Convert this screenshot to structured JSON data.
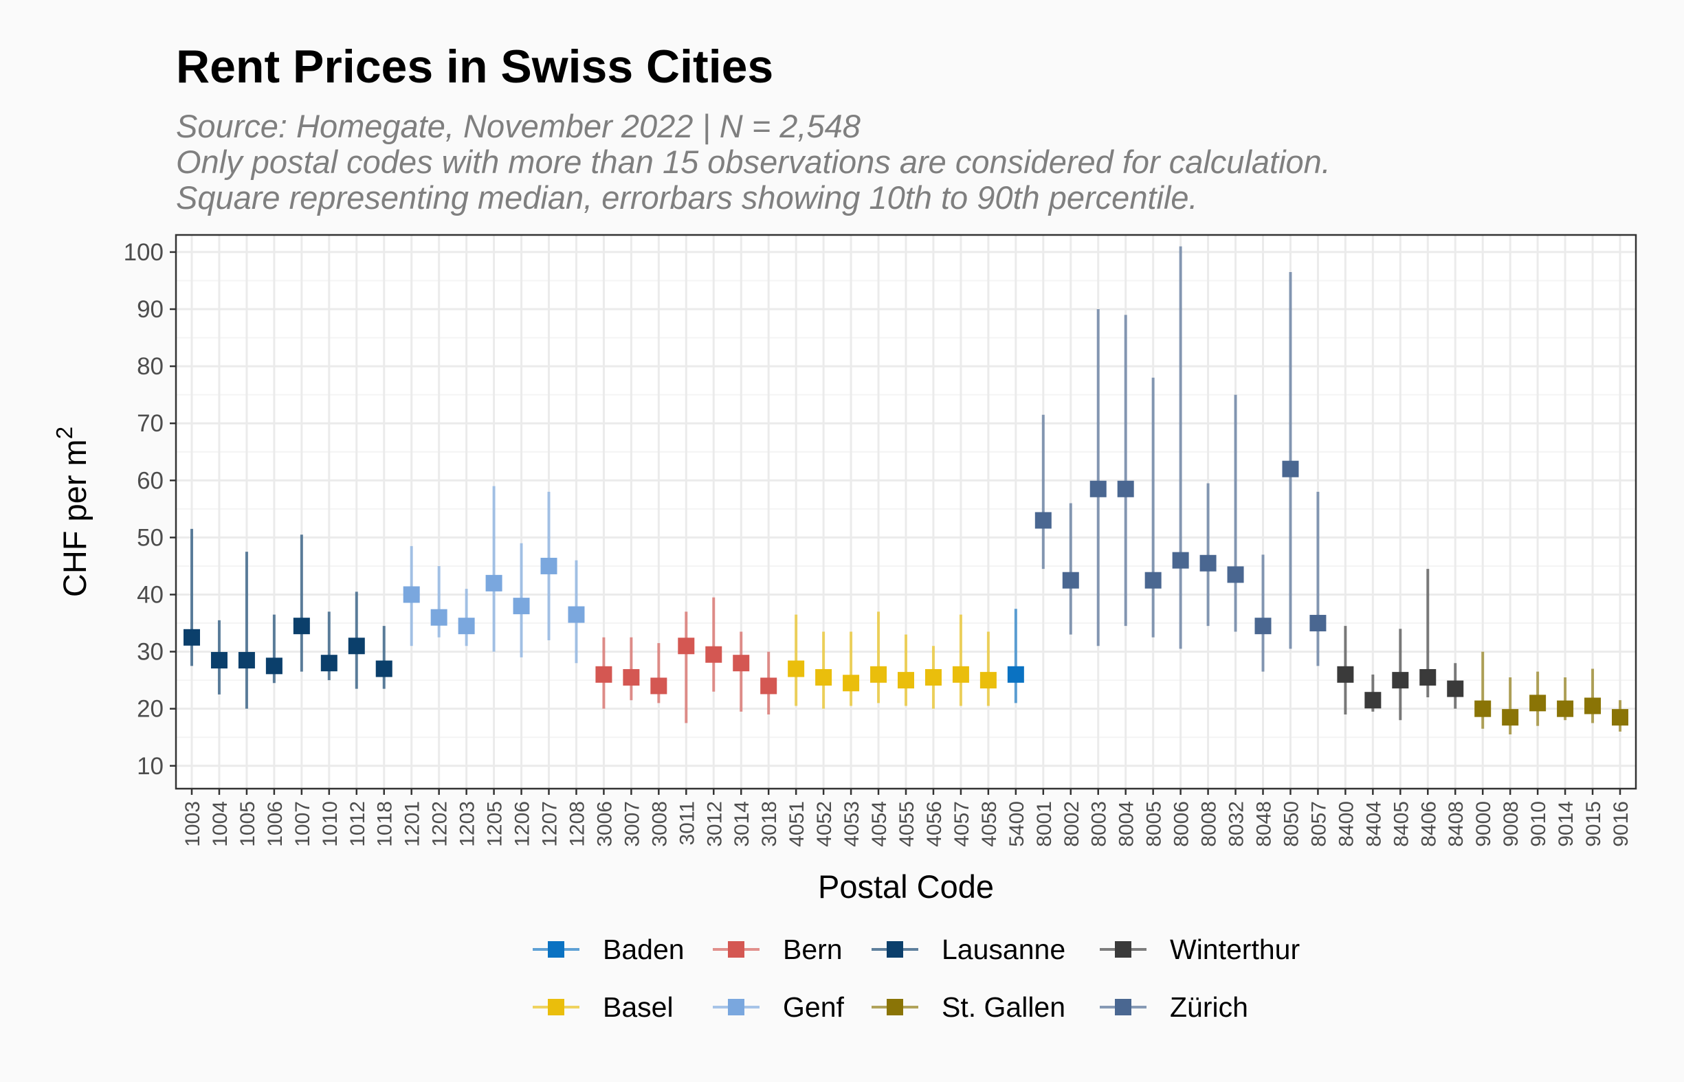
{
  "chart_data": {
    "type": "scatter",
    "title": "Rent Prices in Swiss Cities",
    "subtitle": [
      "Source: Homegate, November 2022 | N = 2,548",
      "Only postal codes with more than 15 observations are considered for calculation.",
      "Square representing median, errorbars showing 10th to 90th percentile."
    ],
    "xlabel": "Postal Code",
    "ylabel": "CHF per m",
    "ylabel_superscript": "2",
    "ylim": [
      6,
      103
    ],
    "yticks": [
      10,
      20,
      30,
      40,
      50,
      60,
      70,
      80,
      90,
      100
    ],
    "grid": true,
    "legend_position": "bottom",
    "legend": [
      {
        "name": "Baden",
        "color": "#0a72c2"
      },
      {
        "name": "Bern",
        "color": "#d45752"
      },
      {
        "name": "Lausanne",
        "color": "#0b3f6b"
      },
      {
        "name": "Winterthur",
        "color": "#3a3a3a"
      },
      {
        "name": "Basel",
        "color": "#eabe0c"
      },
      {
        "name": "Genf",
        "color": "#7aa7de"
      },
      {
        "name": "St. Gallen",
        "color": "#8a7406"
      },
      {
        "name": "Zürich",
        "color": "#4a6791"
      }
    ],
    "points": [
      {
        "code": "1003",
        "city": "Lausanne",
        "median": 32.5,
        "p10": 27.5,
        "p90": 51.5
      },
      {
        "code": "1004",
        "city": "Lausanne",
        "median": 28.5,
        "p10": 22.5,
        "p90": 35.5
      },
      {
        "code": "1005",
        "city": "Lausanne",
        "median": 28.5,
        "p10": 20,
        "p90": 47.5
      },
      {
        "code": "1006",
        "city": "Lausanne",
        "median": 27.5,
        "p10": 24.5,
        "p90": 36.5
      },
      {
        "code": "1007",
        "city": "Lausanne",
        "median": 34.5,
        "p10": 26.5,
        "p90": 50.5
      },
      {
        "code": "1010",
        "city": "Lausanne",
        "median": 28,
        "p10": 25,
        "p90": 37
      },
      {
        "code": "1012",
        "city": "Lausanne",
        "median": 31,
        "p10": 23.5,
        "p90": 40.5
      },
      {
        "code": "1018",
        "city": "Lausanne",
        "median": 27,
        "p10": 23.5,
        "p90": 34.5
      },
      {
        "code": "1201",
        "city": "Genf",
        "median": 40,
        "p10": 31,
        "p90": 48.5
      },
      {
        "code": "1202",
        "city": "Genf",
        "median": 36,
        "p10": 32.5,
        "p90": 45
      },
      {
        "code": "1203",
        "city": "Genf",
        "median": 34.5,
        "p10": 31,
        "p90": 41
      },
      {
        "code": "1205",
        "city": "Genf",
        "median": 42,
        "p10": 30,
        "p90": 59
      },
      {
        "code": "1206",
        "city": "Genf",
        "median": 38,
        "p10": 29,
        "p90": 49
      },
      {
        "code": "1207",
        "city": "Genf",
        "median": 45,
        "p10": 32,
        "p90": 58
      },
      {
        "code": "1208",
        "city": "Genf",
        "median": 36.5,
        "p10": 28,
        "p90": 46
      },
      {
        "code": "3006",
        "city": "Bern",
        "median": 26,
        "p10": 20,
        "p90": 32.5
      },
      {
        "code": "3007",
        "city": "Bern",
        "median": 25.5,
        "p10": 21.5,
        "p90": 32.5
      },
      {
        "code": "3008",
        "city": "Bern",
        "median": 24,
        "p10": 21,
        "p90": 31.5
      },
      {
        "code": "3011",
        "city": "Bern",
        "median": 31,
        "p10": 17.5,
        "p90": 37
      },
      {
        "code": "3012",
        "city": "Bern",
        "median": 29.5,
        "p10": 23,
        "p90": 39.5
      },
      {
        "code": "3014",
        "city": "Bern",
        "median": 28,
        "p10": 19.5,
        "p90": 33.5
      },
      {
        "code": "3018",
        "city": "Bern",
        "median": 24,
        "p10": 19,
        "p90": 30
      },
      {
        "code": "4051",
        "city": "Basel",
        "median": 27,
        "p10": 20.5,
        "p90": 36.5
      },
      {
        "code": "4052",
        "city": "Basel",
        "median": 25.5,
        "p10": 20,
        "p90": 33.5
      },
      {
        "code": "4053",
        "city": "Basel",
        "median": 24.5,
        "p10": 20.5,
        "p90": 33.5
      },
      {
        "code": "4054",
        "city": "Basel",
        "median": 26,
        "p10": 21,
        "p90": 37
      },
      {
        "code": "4055",
        "city": "Basel",
        "median": 25,
        "p10": 20.5,
        "p90": 33
      },
      {
        "code": "4056",
        "city": "Basel",
        "median": 25.5,
        "p10": 20,
        "p90": 31
      },
      {
        "code": "4057",
        "city": "Basel",
        "median": 26,
        "p10": 20.5,
        "p90": 36.5
      },
      {
        "code": "4058",
        "city": "Basel",
        "median": 25,
        "p10": 20.5,
        "p90": 33.5
      },
      {
        "code": "5400",
        "city": "Baden",
        "median": 26,
        "p10": 21,
        "p90": 37.5
      },
      {
        "code": "8001",
        "city": "Zürich",
        "median": 53,
        "p10": 44.5,
        "p90": 71.5
      },
      {
        "code": "8002",
        "city": "Zürich",
        "median": 42.5,
        "p10": 33,
        "p90": 56
      },
      {
        "code": "8003",
        "city": "Zürich",
        "median": 58.5,
        "p10": 31,
        "p90": 90
      },
      {
        "code": "8004",
        "city": "Zürich",
        "median": 58.5,
        "p10": 34.5,
        "p90": 89
      },
      {
        "code": "8005",
        "city": "Zürich",
        "median": 42.5,
        "p10": 32.5,
        "p90": 78
      },
      {
        "code": "8006",
        "city": "Zürich",
        "median": 46,
        "p10": 30.5,
        "p90": 101
      },
      {
        "code": "8008",
        "city": "Zürich",
        "median": 45.5,
        "p10": 34.5,
        "p90": 59.5
      },
      {
        "code": "8032",
        "city": "Zürich",
        "median": 43.5,
        "p10": 33.5,
        "p90": 75
      },
      {
        "code": "8048",
        "city": "Zürich",
        "median": 34.5,
        "p10": 26.5,
        "p90": 47
      },
      {
        "code": "8050",
        "city": "Zürich",
        "median": 62,
        "p10": 30.5,
        "p90": 96.5
      },
      {
        "code": "8057",
        "city": "Zürich",
        "median": 35,
        "p10": 27.5,
        "p90": 58
      },
      {
        "code": "8400",
        "city": "Winterthur",
        "median": 26,
        "p10": 19,
        "p90": 34.5
      },
      {
        "code": "8404",
        "city": "Winterthur",
        "median": 21.5,
        "p10": 19.5,
        "p90": 26
      },
      {
        "code": "8405",
        "city": "Winterthur",
        "median": 25,
        "p10": 18,
        "p90": 34
      },
      {
        "code": "8406",
        "city": "Winterthur",
        "median": 25.5,
        "p10": 22,
        "p90": 44.5
      },
      {
        "code": "8408",
        "city": "Winterthur",
        "median": 23.5,
        "p10": 20,
        "p90": 28
      },
      {
        "code": "9000",
        "city": "St. Gallen",
        "median": 20,
        "p10": 16.5,
        "p90": 30
      },
      {
        "code": "9008",
        "city": "St. Gallen",
        "median": 18.5,
        "p10": 15.5,
        "p90": 25.5
      },
      {
        "code": "9010",
        "city": "St. Gallen",
        "median": 21,
        "p10": 17,
        "p90": 26.5
      },
      {
        "code": "9014",
        "city": "St. Gallen",
        "median": 20,
        "p10": 18,
        "p90": 25.5
      },
      {
        "code": "9015",
        "city": "St. Gallen",
        "median": 20.5,
        "p10": 17.5,
        "p90": 27
      },
      {
        "code": "9016",
        "city": "St. Gallen",
        "median": 18.5,
        "p10": 16,
        "p90": 21.5
      }
    ]
  }
}
